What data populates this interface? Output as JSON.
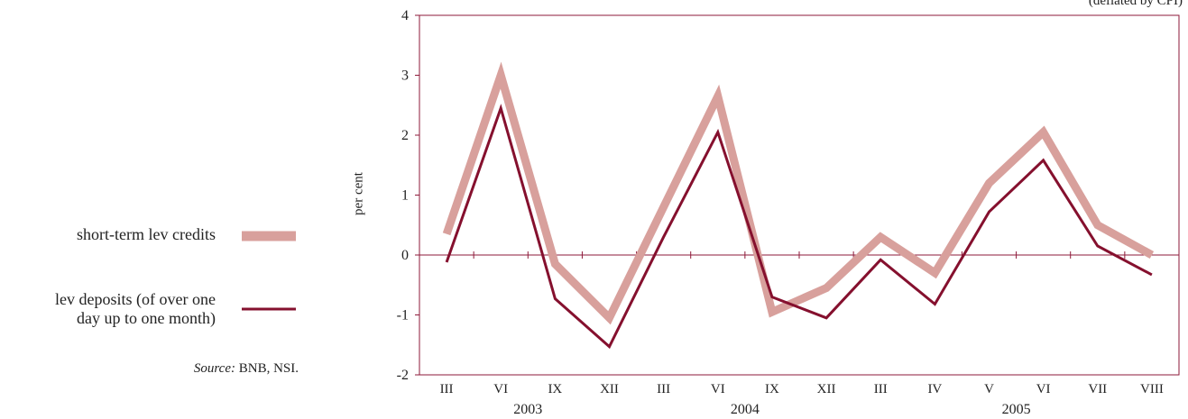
{
  "chart_data": {
    "type": "line",
    "note": "(deflated by CPI)",
    "ylabel": "per cent",
    "ylim": [
      -2,
      4
    ],
    "yticks": [
      -2,
      -1,
      0,
      1,
      2,
      3,
      4
    ],
    "categories": [
      "III",
      "VI",
      "IX",
      "XII",
      "III",
      "VI",
      "IX",
      "XII",
      "III",
      "IV",
      "V",
      "VI",
      "VII",
      "VIII"
    ],
    "year_labels": [
      {
        "label": "2003",
        "center_index": 1.5
      },
      {
        "label": "2004",
        "center_index": 5.5
      },
      {
        "label": "2005",
        "center_index": 10.5
      }
    ],
    "series": [
      {
        "name": "short-term lev credits",
        "color": "#d8a09c",
        "values": [
          0.35,
          3.0,
          -0.15,
          -1.05,
          0.8,
          2.65,
          -0.95,
          -0.55,
          0.3,
          -0.3,
          1.2,
          2.05,
          0.5,
          0.0
        ]
      },
      {
        "name": "lev deposits (of over one day up to one month)",
        "color": "#85102e",
        "values": [
          -0.12,
          2.45,
          -0.73,
          -1.53,
          0.3,
          2.05,
          -0.7,
          -1.05,
          -0.08,
          -0.82,
          0.72,
          1.58,
          0.15,
          -0.33
        ]
      }
    ],
    "grid": false
  },
  "legend": {
    "items": [
      {
        "label": "short-term lev credits"
      },
      {
        "label_line1": "lev deposits (of over one",
        "label_line2": "day up to one month)"
      }
    ]
  },
  "source": {
    "prefix": "Source:",
    "text": "BNB, NSI."
  }
}
